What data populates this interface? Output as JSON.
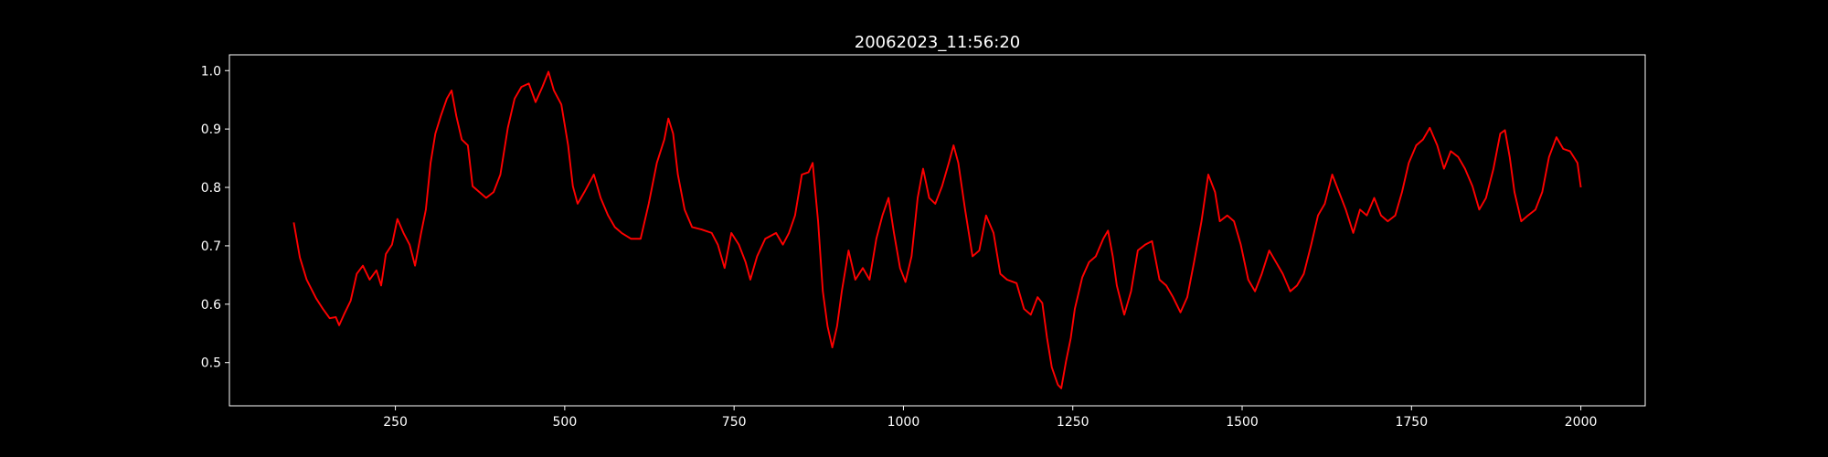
{
  "chart_data": {
    "type": "line",
    "title": "20062023_11:56:20",
    "xlim": [
      5,
      2095
    ],
    "ylim": [
      0.426,
      1.027
    ],
    "xticks": [
      250,
      500,
      750,
      1000,
      1250,
      1500,
      1750,
      2000
    ],
    "yticks": [
      {
        "value": 0.5,
        "label": "0.5"
      },
      {
        "value": 0.6,
        "label": "0.6"
      },
      {
        "value": 0.7,
        "label": "0.7"
      },
      {
        "value": 0.8,
        "label": "0.8"
      },
      {
        "value": 0.9,
        "label": "0.9"
      },
      {
        "value": 1.0,
        "label": "1.0"
      }
    ],
    "grid": false,
    "series": [
      {
        "color": "#ff0000",
        "x": [
          100,
          109,
          119,
          133,
          143,
          153,
          162,
          167,
          174,
          184,
          193,
          202,
          212,
          222,
          229,
          236,
          245,
          253,
          262,
          271,
          279,
          288,
          295,
          302,
          309,
          317,
          326,
          333,
          340,
          348,
          357,
          364,
          374,
          384,
          395,
          405,
          416,
          426,
          436,
          447,
          457,
          467,
          476,
          484,
          495,
          505,
          512,
          519,
          529,
          543,
          553,
          564,
          574,
          584,
          598,
          612,
          624,
          636,
          647,
          653,
          660,
          667,
          677,
          688,
          702,
          717,
          726,
          736,
          746,
          757,
          767,
          774,
          784,
          796,
          812,
          822,
          831,
          840,
          850,
          860,
          866,
          874,
          881,
          888,
          895,
          902,
          909,
          919,
          929,
          940,
          950,
          960,
          969,
          978,
          986,
          995,
          1003,
          1012,
          1021,
          1029,
          1038,
          1047,
          1057,
          1067,
          1074,
          1081,
          1091,
          1102,
          1112,
          1122,
          1133,
          1143,
          1153,
          1167,
          1178,
          1188,
          1198,
          1205,
          1212,
          1219,
          1228,
          1233,
          1240,
          1247,
          1253,
          1264,
          1274,
          1284,
          1295,
          1302,
          1309,
          1315,
          1326,
          1336,
          1346,
          1357,
          1367,
          1378,
          1388,
          1398,
          1409,
          1419,
          1429,
          1440,
          1450,
          1460,
          1467,
          1478,
          1488,
          1498,
          1509,
          1519,
          1529,
          1540,
          1550,
          1560,
          1571,
          1581,
          1591,
          1602,
          1612,
          1622,
          1633,
          1643,
          1653,
          1664,
          1674,
          1684,
          1695,
          1705,
          1715,
          1726,
          1736,
          1746,
          1757,
          1767,
          1777,
          1788,
          1798,
          1808,
          1819,
          1829,
          1840,
          1850,
          1860,
          1871,
          1881,
          1888,
          1895,
          1902,
          1912,
          1922,
          1933,
          1943,
          1953,
          1964,
          1974,
          1984,
          1995,
          2000
        ],
        "values": [
          0.74,
          0.68,
          0.642,
          0.61,
          0.592,
          0.576,
          0.578,
          0.564,
          0.582,
          0.606,
          0.652,
          0.666,
          0.642,
          0.658,
          0.632,
          0.686,
          0.702,
          0.746,
          0.722,
          0.702,
          0.666,
          0.722,
          0.762,
          0.842,
          0.892,
          0.922,
          0.952,
          0.966,
          0.922,
          0.882,
          0.872,
          0.802,
          0.792,
          0.782,
          0.792,
          0.822,
          0.902,
          0.952,
          0.972,
          0.978,
          0.946,
          0.972,
          0.998,
          0.966,
          0.942,
          0.872,
          0.802,
          0.772,
          0.792,
          0.822,
          0.782,
          0.752,
          0.732,
          0.722,
          0.712,
          0.712,
          0.772,
          0.842,
          0.882,
          0.918,
          0.892,
          0.822,
          0.762,
          0.732,
          0.728,
          0.722,
          0.702,
          0.662,
          0.722,
          0.702,
          0.672,
          0.642,
          0.682,
          0.712,
          0.722,
          0.702,
          0.722,
          0.752,
          0.822,
          0.826,
          0.842,
          0.742,
          0.622,
          0.562,
          0.526,
          0.562,
          0.622,
          0.692,
          0.642,
          0.662,
          0.642,
          0.712,
          0.752,
          0.782,
          0.722,
          0.662,
          0.638,
          0.682,
          0.782,
          0.832,
          0.782,
          0.772,
          0.802,
          0.842,
          0.872,
          0.842,
          0.762,
          0.682,
          0.692,
          0.752,
          0.722,
          0.652,
          0.642,
          0.636,
          0.592,
          0.582,
          0.612,
          0.602,
          0.542,
          0.492,
          0.462,
          0.456,
          0.502,
          0.542,
          0.592,
          0.646,
          0.672,
          0.682,
          0.712,
          0.726,
          0.682,
          0.632,
          0.582,
          0.622,
          0.692,
          0.702,
          0.708,
          0.642,
          0.632,
          0.612,
          0.586,
          0.612,
          0.672,
          0.742,
          0.822,
          0.792,
          0.742,
          0.752,
          0.742,
          0.702,
          0.642,
          0.622,
          0.652,
          0.692,
          0.672,
          0.652,
          0.622,
          0.632,
          0.652,
          0.702,
          0.752,
          0.772,
          0.822,
          0.792,
          0.762,
          0.722,
          0.762,
          0.752,
          0.782,
          0.752,
          0.742,
          0.752,
          0.792,
          0.842,
          0.872,
          0.882,
          0.902,
          0.872,
          0.832,
          0.862,
          0.852,
          0.832,
          0.802,
          0.762,
          0.782,
          0.832,
          0.892,
          0.898,
          0.852,
          0.792,
          0.742,
          0.752,
          0.762,
          0.792,
          0.852,
          0.886,
          0.866,
          0.862,
          0.842,
          0.8
        ]
      }
    ]
  }
}
